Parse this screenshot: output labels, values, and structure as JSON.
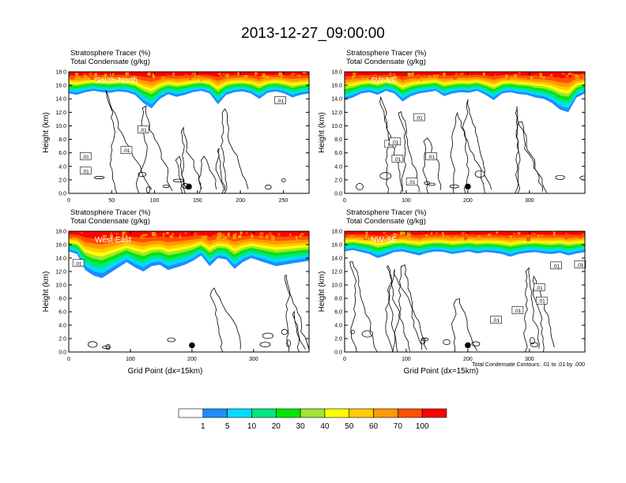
{
  "title": "2013-12-27_09:00:00",
  "panel_header": {
    "line1": "Stratosphere Tracer   (%)",
    "line2": "Total Condensate   (g/kg)"
  },
  "y_axis_label": "Height (km)",
  "x_axis_label": "Grid Point (dx=15km)",
  "contour_note": "Total Condensate Contours: .01 to .01 by .000",
  "colorbar": {
    "colors": [
      "#ffffff",
      "#1e8cff",
      "#00dcff",
      "#00e680",
      "#00e600",
      "#a0e632",
      "#ffff00",
      "#ffcc00",
      "#ff9900",
      "#ff5000",
      "#ff0000"
    ],
    "labels": [
      "1",
      "5",
      "10",
      "20",
      "30",
      "40",
      "50",
      "60",
      "70",
      "100"
    ]
  },
  "chart_data": [
    {
      "type": "heatmap",
      "region": "South-North",
      "contour_labels": [
        ".01",
        ".01",
        ".01",
        ".01",
        ".01"
      ],
      "xlim": [
        0,
        280
      ],
      "ylim": [
        0,
        18
      ],
      "xticks": [
        "0",
        "50",
        "100",
        "150",
        "200",
        "250"
      ],
      "yticks": [
        "0.0",
        "2.0",
        "4.0",
        "6.0",
        "8.0",
        "10.0",
        "12.0",
        "14.0",
        "16.0",
        "18.0"
      ],
      "marker": {
        "x": 140,
        "y": 1.0
      },
      "tracer_top_km": [
        14.8,
        14.6,
        15.0,
        15.2,
        15.0,
        14.9,
        15.1,
        15.0,
        14.6,
        13.4,
        12.6,
        14.0,
        14.7,
        14.3,
        14.6,
        15.0,
        15.2,
        14.8,
        13.2,
        14.6,
        15.0,
        15.1,
        14.8,
        14.0,
        14.9,
        15.1,
        14.8,
        14.2,
        14.6,
        14.8
      ]
    },
    {
      "type": "heatmap",
      "region": "SW-NE",
      "contour_labels": [
        ".01",
        ".01",
        ".01",
        ".01",
        ".01",
        ".01"
      ],
      "xlim": [
        0,
        390
      ],
      "ylim": [
        0,
        18
      ],
      "xticks": [
        "0",
        "100",
        "200",
        "300"
      ],
      "yticks": [
        "0.0",
        "2.0",
        "4.0",
        "6.0",
        "8.0",
        "10.0",
        "12.0",
        "14.0",
        "16.0",
        "18.0"
      ],
      "marker": {
        "x": 200,
        "y": 1.0
      },
      "tracer_top_km": [
        13.8,
        14.2,
        14.8,
        15.0,
        14.6,
        15.2,
        14.8,
        13.6,
        14.4,
        14.8,
        15.0,
        15.2,
        14.4,
        14.8,
        15.0,
        14.9,
        15.2,
        14.6,
        13.8,
        14.8,
        15.0,
        14.7,
        14.6,
        14.2,
        14.0,
        13.4,
        12.4,
        12.0,
        14.2,
        14.8
      ]
    },
    {
      "type": "heatmap",
      "region": "West-East",
      "contour_labels": [
        ".01"
      ],
      "xlim": [
        0,
        390
      ],
      "ylim": [
        0,
        18
      ],
      "xticks": [
        "0",
        "100",
        "200",
        "300"
      ],
      "yticks": [
        "0.0",
        "2.0",
        "4.0",
        "6.0",
        "8.0",
        "10.0",
        "12.0",
        "14.0",
        "16.0",
        "18.0"
      ],
      "marker": {
        "x": 200,
        "y": 1.0
      },
      "tracer_top_km": [
        15.0,
        14.6,
        12.2,
        11.4,
        11.0,
        11.8,
        12.6,
        13.4,
        12.6,
        12.0,
        12.8,
        13.0,
        12.2,
        12.6,
        13.0,
        13.6,
        14.4,
        12.8,
        14.0,
        13.8,
        12.4,
        13.4,
        14.0,
        13.6,
        13.2,
        12.8,
        13.0,
        13.2,
        13.4,
        13.6
      ]
    },
    {
      "type": "heatmap",
      "region": "NW-SE",
      "contour_labels": [
        ".01",
        ".01",
        ".01",
        ".01",
        ".01",
        ".01"
      ],
      "xlim": [
        0,
        390
      ],
      "ylim": [
        0,
        18
      ],
      "xticks": [
        "0",
        "100",
        "200",
        "300"
      ],
      "yticks": [
        "0.0",
        "2.0",
        "4.0",
        "6.0",
        "8.0",
        "10.0",
        "12.0",
        "14.0",
        "16.0",
        "18.0"
      ],
      "marker": {
        "x": 200,
        "y": 1.0
      },
      "tracer_top_km": [
        15.0,
        15.2,
        14.9,
        14.6,
        14.0,
        14.4,
        14.9,
        15.0,
        14.7,
        14.4,
        14.8,
        15.0,
        14.9,
        14.6,
        14.8,
        15.0,
        14.7,
        14.9,
        14.8,
        14.6,
        14.2,
        14.6,
        14.8,
        14.9,
        14.7,
        14.6,
        14.8,
        14.4,
        14.7,
        14.9
      ]
    }
  ]
}
